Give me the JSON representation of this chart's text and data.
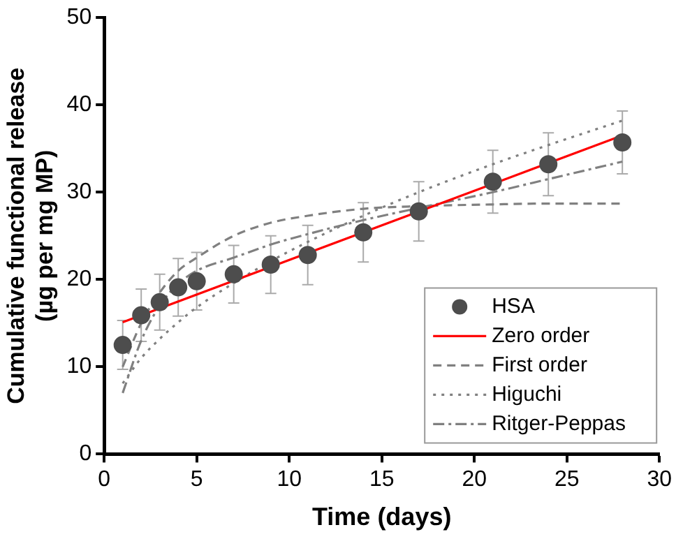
{
  "chart_data": {
    "type": "scatter",
    "xlabel": "Time (days)",
    "ylabel": "Cumulative functional release (µg per mg MP)",
    "xlim": [
      0,
      30
    ],
    "xticks": [
      0,
      5,
      10,
      15,
      20,
      25,
      30
    ],
    "ylim": [
      0,
      50
    ],
    "yticks": [
      0,
      10,
      20,
      30,
      40,
      50
    ],
    "grid": false,
    "legend": "bottom right",
    "series": [
      {
        "name": "HSA",
        "marker": "circle",
        "color": "#4d4d4d",
        "x": [
          1,
          2,
          3,
          4,
          5,
          7,
          9,
          11,
          14,
          17,
          21,
          24,
          28
        ],
        "values": [
          12.5,
          15.9,
          17.4,
          19.1,
          19.8,
          20.6,
          21.7,
          22.8,
          25.4,
          27.8,
          31.2,
          33.2,
          35.7
        ],
        "errors": [
          2.8,
          3,
          3.2,
          3.3,
          3.3,
          3.3,
          3.3,
          3.4,
          3.4,
          3.4,
          3.6,
          3.6,
          3.6
        ]
      },
      {
        "name": "Zero order",
        "type": "line",
        "line_style": "solid",
        "marker": "none",
        "color": "#ff0000",
        "x": [
          1,
          28
        ],
        "values": [
          15.1,
          36.5
        ]
      },
      {
        "name": "First order",
        "type": "line",
        "line_style": "dashed",
        "marker": "none",
        "color": "#808080",
        "x": [
          1,
          2,
          3,
          4,
          5,
          7,
          9,
          11,
          14,
          17,
          21,
          24,
          28
        ],
        "values": [
          10,
          15,
          18.5,
          21,
          22.5,
          25,
          26.5,
          27.3,
          28.1,
          28.4,
          28.6,
          28.7,
          28.7
        ]
      },
      {
        "name": "Higuchi",
        "type": "line",
        "line_style": "dotted",
        "marker": "none",
        "color": "#808080",
        "x": [
          1,
          2,
          3,
          4,
          5,
          7,
          9,
          11,
          14,
          17,
          21,
          24,
          28
        ],
        "values": [
          8.1,
          11,
          13.2,
          15.1,
          16.8,
          19.6,
          22.1,
          24.3,
          27.3,
          30,
          33.2,
          35.4,
          38.2
        ]
      },
      {
        "name": "Ritger-Peppas",
        "type": "line",
        "line_style": "dashdot",
        "marker": "none",
        "color": "#808080",
        "x": [
          1,
          2,
          3,
          4,
          5,
          7,
          9,
          11,
          14,
          17,
          21,
          24,
          28
        ],
        "values": [
          7,
          13,
          17,
          19.5,
          21,
          22.5,
          24,
          25.2,
          26.8,
          28.2,
          30,
          31.5,
          33.5
        ]
      }
    ]
  }
}
